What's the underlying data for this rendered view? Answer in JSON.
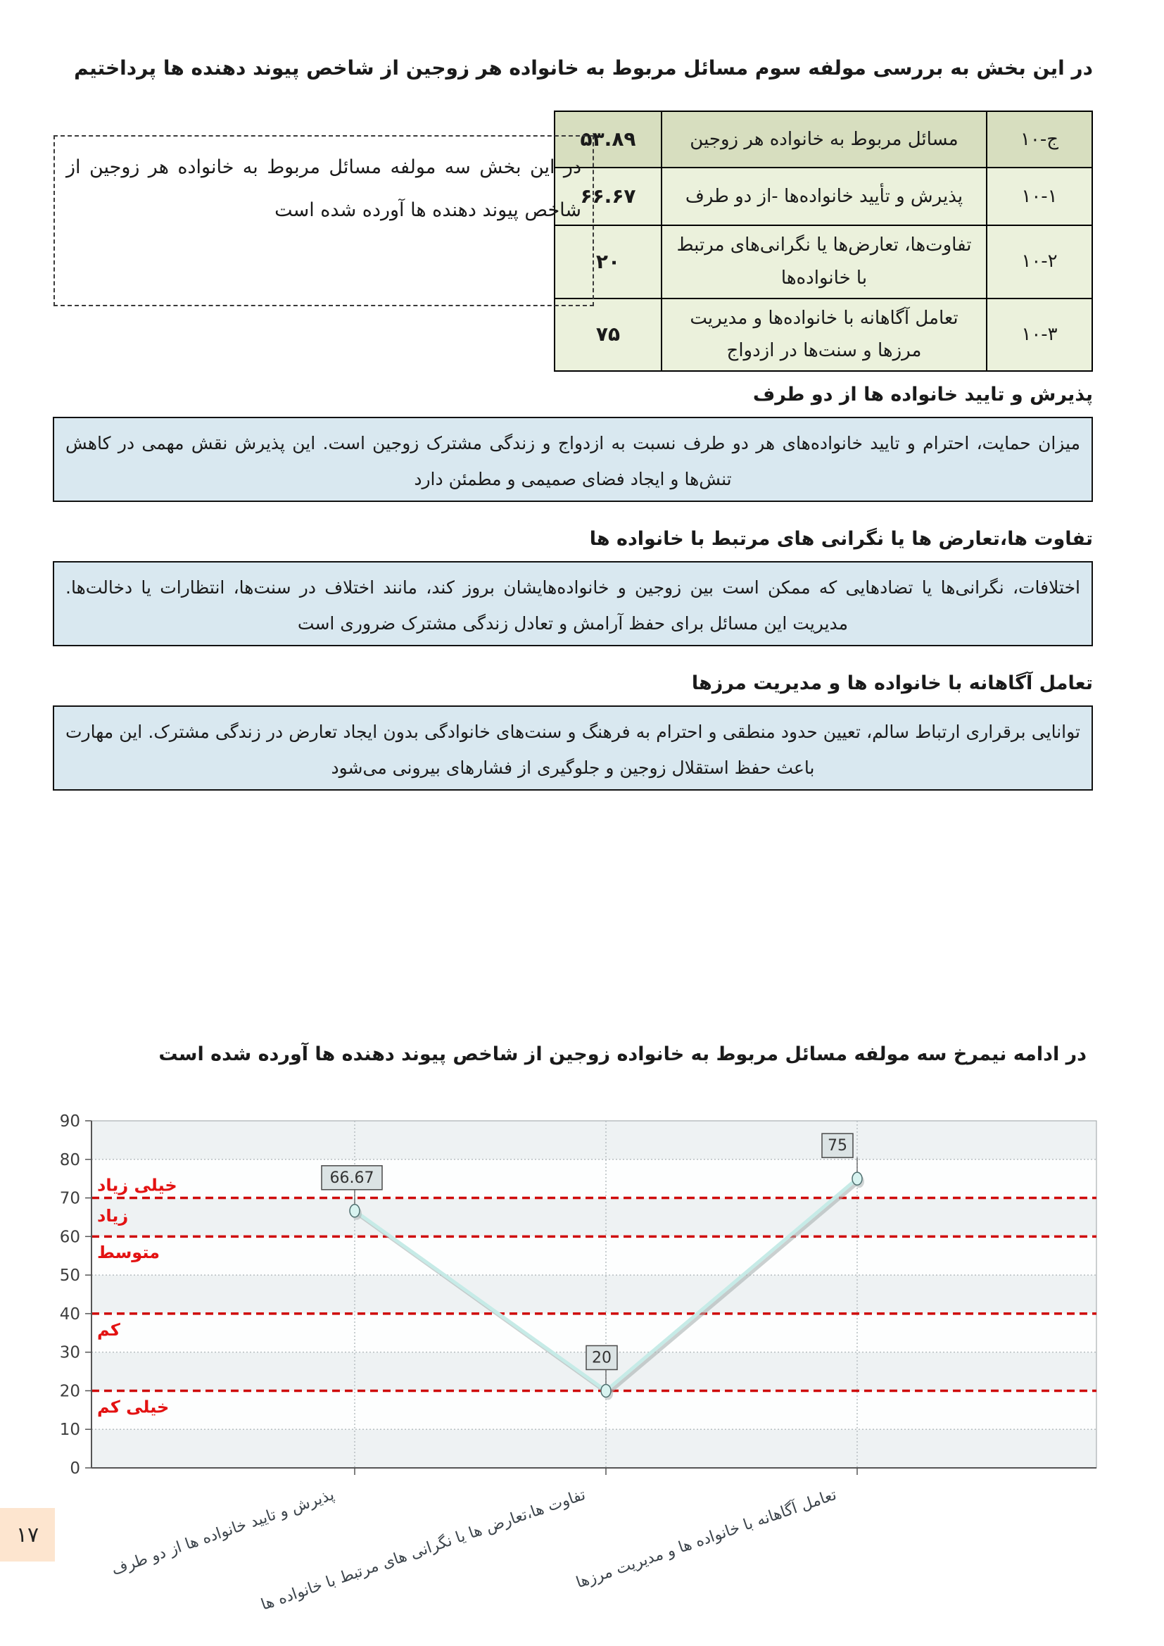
{
  "header": {
    "intro": "در این بخش به بررسی مولفه سوم مسائل مربوط به خانواده هر زوجین از شاخص پیوند دهنده ها پرداختیم"
  },
  "note_box": {
    "text": "در این بخش سه مولفه مسائل مربوط به خانواده هر زوجین از شاخص پیوند دهنده ها آورده شده است"
  },
  "summary_table": {
    "rows": [
      {
        "id": "ج-۱۰",
        "label": "مسائل مربوط به خانواده هر زوجین",
        "value": "۵۳.۸۹"
      },
      {
        "id": "۱۰-۱",
        "label": "پذیرش و تأیید خانواده‌ها -از دو طرف",
        "value": "۶۶.۶۷"
      },
      {
        "id": "۱۰-۲",
        "label": "تفاوت‌ها، تعارض‌ها یا نگرانی‌های مرتبط با خانواده‌ها",
        "value": "۲۰"
      },
      {
        "id": "۱۰-۳",
        "label": "تعامل آگاهانه با خانواده‌ها و مدیریت مرزها و سنت‌ها در ازدواج",
        "value": "۷۵"
      }
    ]
  },
  "sections": [
    {
      "heading": "پذیرش و تایید خانواده ها از دو طرف",
      "body": "میزان حمایت، احترام و تایید خانواده‌های هر دو طرف نسبت به ازدواج و زندگی مشترک زوجین است. این پذیرش نقش مهمی در کاهش تنش‌ها و ایجاد فضای صمیمی و مطمئن دارد"
    },
    {
      "heading": "تفاوت ها،تعارض ها یا نگرانی های مرتبط با خانواده ها",
      "body": "اختلافات، نگرانی‌ها یا تضادهایی که ممکن است بین زوجین و خانواده‌هایشان بروز کند، مانند اختلاف در سنت‌ها، انتظارات یا دخالت‌ها. مدیریت این مسائل برای حفظ آرامش و تعادل زندگی مشترک ضروری است"
    },
    {
      "heading": "تعامل آگاهانه با خانواده ها و مدیریت مرزها",
      "body": "توانایی برقراری ارتباط سالم، تعیین حدود منطقی و احترام به فرهنگ و سنت‌های خانوادگی بدون ایجاد تعارض در زندگی مشترک. این مهارت باعث حفظ استقلال زوجین و جلوگیری از فشارهای بیرونی می‌شود"
    }
  ],
  "chart_caption": "در ادامه نیمرخ سه مولفه مسائل مربوط به خانواده زوجین از شاخص پیوند دهنده ها آورده شده است",
  "chart_data": {
    "type": "line",
    "categories": [
      "پذیرش و تایید خانواده ها از دو طرف",
      "تفاوت ها،تعارض ها یا نگرانی های مرتبط با خانواده ها",
      "تعامل آگاهانه با خانواده ها و مدیریت مرزها"
    ],
    "values": [
      66.67,
      20,
      75
    ],
    "data_labels": [
      "66.67",
      "20",
      "75"
    ],
    "ylim": [
      0,
      90
    ],
    "ytick_step": 10,
    "yticks": [
      0,
      10,
      20,
      30,
      40,
      50,
      60,
      70,
      80,
      90
    ],
    "grid": true,
    "legend": "none",
    "threshold_lines": [
      70,
      60,
      40,
      20
    ],
    "zone_labels": [
      {
        "text": "خیلی زیاد",
        "y": 73.5
      },
      {
        "text": "زیاد",
        "y": 65.5
      },
      {
        "text": "متوسط",
        "y": 56
      },
      {
        "text": "کم",
        "y": 36
      },
      {
        "text": "خیلی کم",
        "y": 16
      }
    ],
    "colors": {
      "line": "#c6ebe7",
      "line_shadow": "#a9b0b0",
      "marker_fill": "#d8f3f0",
      "marker_stroke": "#4f6f6f",
      "label_box_fill": "#dbe3e4",
      "label_box_stroke": "#4a4a4a",
      "threshold": "#cf0a0a",
      "zone_text": "#e31212",
      "band": "#eef2f3",
      "band_alt": "#fdfefe",
      "grid_dotted": "#b7bec1",
      "axis": "#555555",
      "tick_text": "#3e3e3e"
    }
  },
  "page": {
    "number": "۱۷"
  }
}
